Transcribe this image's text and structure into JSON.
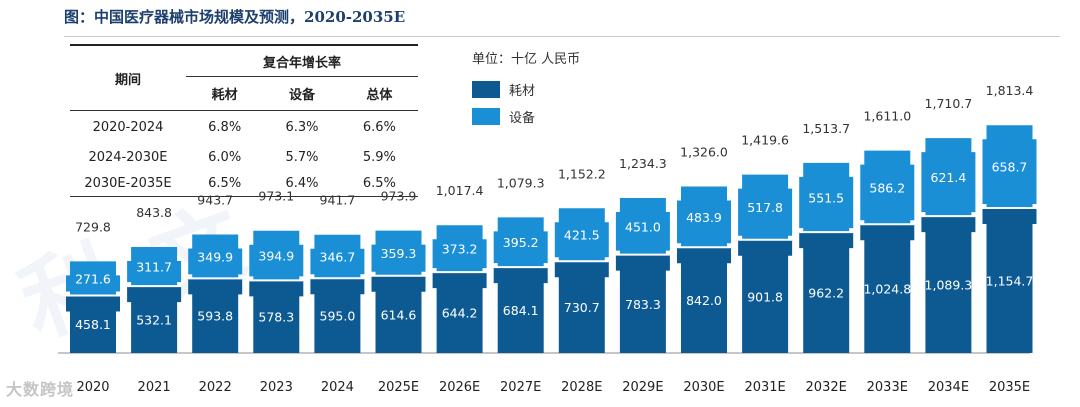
{
  "header": {
    "title": "图：中国医疗器械市场规模及预测，2020-2035E"
  },
  "cagr_table": {
    "period_header": "期间",
    "cagr_header": "复合年增长率",
    "columns": [
      "耗材",
      "设备",
      "总体"
    ],
    "rows": [
      {
        "period": "2020-2024",
        "values": [
          "6.8%",
          "6.3%",
          "6.6%"
        ]
      },
      {
        "period": "2024-2030E",
        "values": [
          "6.0%",
          "5.7%",
          "5.9%"
        ]
      },
      {
        "period": "2030E-2035E",
        "values": [
          "6.5%",
          "6.4%",
          "6.5%"
        ]
      }
    ]
  },
  "unit_label": "单位：十亿 人民币",
  "legend": [
    {
      "label": "耗材",
      "color": "#0d5a93"
    },
    {
      "label": "设备",
      "color": "#1b8fd6"
    }
  ],
  "watermark": {
    "small_text": "大数跨境",
    "big_text_1": "利",
    "big_text_2": "文"
  },
  "chart_data": {
    "type": "bar",
    "stacked": true,
    "title": "",
    "xlabel": "",
    "ylabel": "",
    "ylim": [
      0,
      1900
    ],
    "grid": false,
    "categories": [
      "2020",
      "2021",
      "2022",
      "2023",
      "2024",
      "2025E",
      "2026E",
      "2027E",
      "2028E",
      "2029E",
      "2030E",
      "2031E",
      "2032E",
      "2033E",
      "2034E",
      "2035E"
    ],
    "series": [
      {
        "name": "耗材",
        "color": "#0d5a93",
        "values": [
          458.1,
          532.1,
          593.8,
          578.3,
          595.0,
          614.6,
          644.2,
          684.1,
          730.7,
          783.3,
          842.0,
          901.8,
          962.2,
          1024.8,
          1089.3,
          1154.7
        ],
        "labels": [
          "458.1",
          "532.1",
          "593.8",
          "578.3",
          "595.0",
          "614.6",
          "644.2",
          "684.1",
          "730.7",
          "783.3",
          "842.0",
          "901.8",
          "962.2",
          "1,024.8",
          "1,089.3",
          "1,154.7"
        ]
      },
      {
        "name": "设备",
        "color": "#1b8fd6",
        "values": [
          271.6,
          311.7,
          349.9,
          394.9,
          346.7,
          359.3,
          373.2,
          395.2,
          421.5,
          451.0,
          483.9,
          517.8,
          551.5,
          586.2,
          621.4,
          658.7
        ],
        "labels": [
          "271.6",
          "311.7",
          "349.9",
          "394.9",
          "346.7",
          "359.3",
          "373.2",
          "395.2",
          "421.5",
          "451.0",
          "483.9",
          "517.8",
          "551.5",
          "586.2",
          "621.4",
          "658.7"
        ]
      }
    ],
    "totals": [
      729.8,
      843.8,
      943.7,
      973.1,
      941.7,
      973.9,
      1017.4,
      1079.3,
      1152.2,
      1234.3,
      1326.0,
      1419.6,
      1513.7,
      1611.0,
      1710.7,
      1813.4
    ],
    "total_labels": [
      "729.8",
      "843.8",
      "943.7",
      "973.1",
      "941.7",
      "973.9",
      "1,017.4",
      "1,079.3",
      "1,152.2",
      "1,234.3",
      "1,326.0",
      "1,419.6",
      "1,513.7",
      "1,611.0",
      "1,710.7",
      "1,813.4"
    ]
  }
}
